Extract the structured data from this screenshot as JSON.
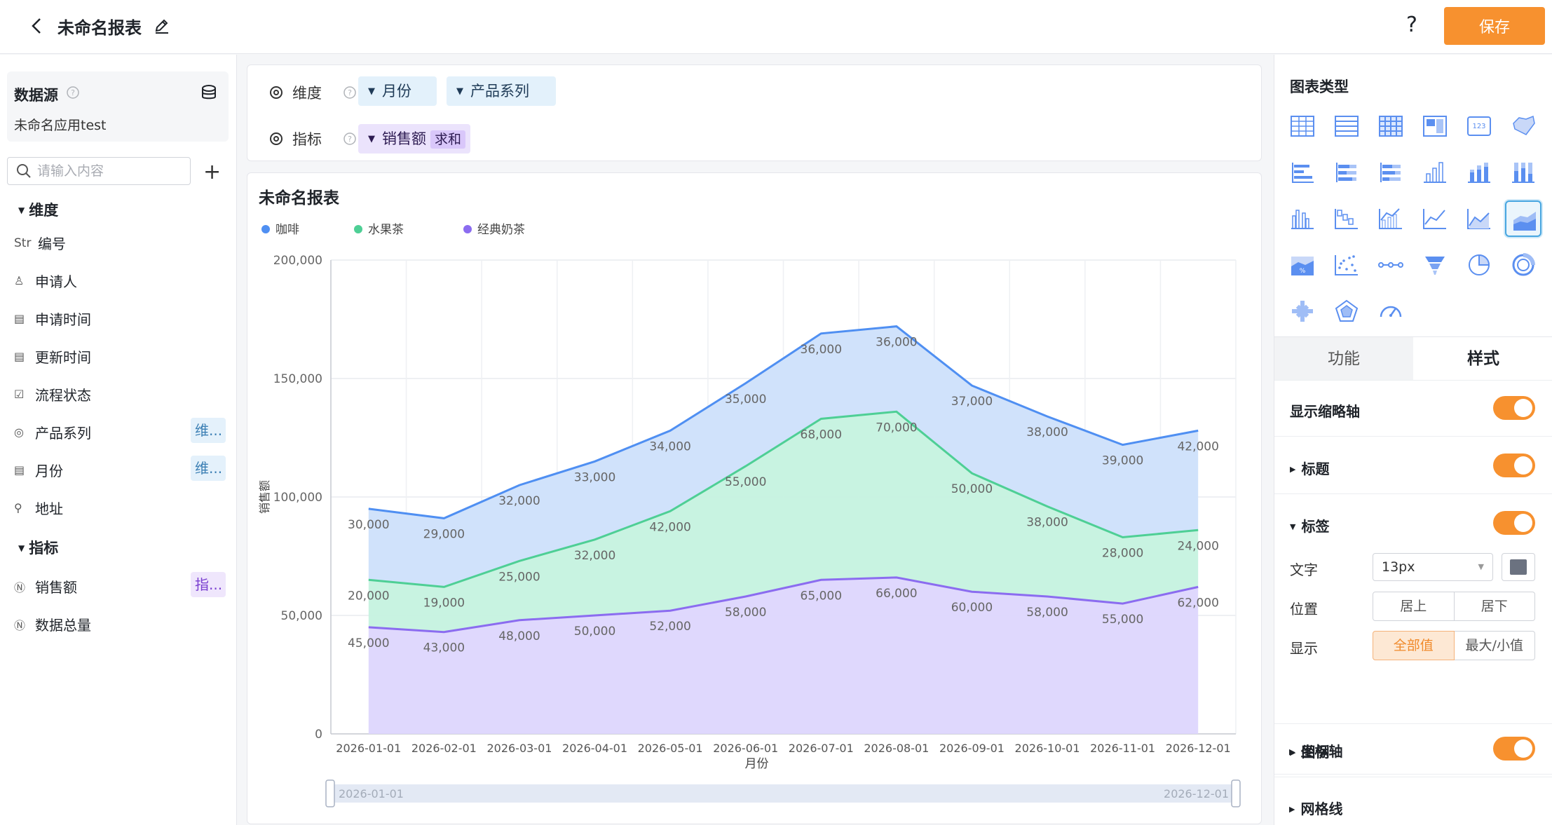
{
  "header": {
    "title": "未命名报表",
    "save_label": "保存",
    "help": "?"
  },
  "left": {
    "datasource_label": "数据源",
    "app_name": "未命名应用test",
    "search_placeholder": "请输入内容",
    "dim_group": "维度",
    "metric_group": "指标",
    "dimensions": [
      {
        "icon": "Str",
        "label": "编号"
      },
      {
        "icon": "person-icon",
        "label": "申请人"
      },
      {
        "icon": "calendar-icon",
        "label": "申请时间"
      },
      {
        "icon": "calendar-icon",
        "label": "更新时间"
      },
      {
        "icon": "checkbox-icon",
        "label": "流程状态"
      },
      {
        "icon": "target-icon",
        "label": "产品系列",
        "tag": "维..."
      },
      {
        "icon": "calendar-icon",
        "label": "月份",
        "tag": "维..."
      },
      {
        "icon": "location-icon",
        "label": "地址"
      }
    ],
    "metrics": [
      {
        "icon": "number-icon",
        "label": "销售额",
        "tag": "指..."
      },
      {
        "icon": "number-icon",
        "label": "数据总量"
      }
    ]
  },
  "fields": {
    "dim_label": "维度",
    "metric_label": "指标",
    "dim_pills": [
      "月份",
      "产品系列"
    ],
    "metric_pill": "销售额",
    "metric_agg": "求和"
  },
  "chart_data": {
    "type": "area",
    "stacked": true,
    "title": "未命名报表",
    "xlabel": "月份",
    "ylabel": "销售额",
    "ylim": [
      0,
      200000
    ],
    "yticks": [
      "200,000",
      "150,000",
      "100,000",
      "50,000",
      "0"
    ],
    "categories": [
      "2026-01-01",
      "2026-02-01",
      "2026-03-01",
      "2026-04-01",
      "2026-05-01",
      "2026-06-01",
      "2026-07-01",
      "2026-08-01",
      "2026-09-01",
      "2026-10-01",
      "2026-11-01",
      "2026-12-01"
    ],
    "series": [
      {
        "name": "经典奶茶",
        "color": "#8b6cf0",
        "fill": "#ddd6fd",
        "values": [
          45000,
          43000,
          48000,
          50000,
          52000,
          58000,
          65000,
          66000,
          60000,
          58000,
          55000,
          62000
        ],
        "labels": [
          "45,000",
          "43,000",
          "48,000",
          "50,000",
          "52,000",
          "58,000",
          "65,000",
          "66,000",
          "60,000",
          "58,000",
          "55,000",
          "62,000"
        ]
      },
      {
        "name": "水果茶",
        "color": "#4ecf95",
        "fill": "#c5f2df",
        "values": [
          20000,
          19000,
          25000,
          32000,
          42000,
          55000,
          68000,
          70000,
          50000,
          38000,
          28000,
          24000
        ],
        "labels": [
          "20,000",
          "19,000",
          "25,000",
          "32,000",
          "42,000",
          "55,000",
          "68,000",
          "70,000",
          "50,000",
          "38,000",
          "28,000",
          "24,000"
        ]
      },
      {
        "name": "咖啡",
        "color": "#4f8ff2",
        "fill": "#cde0fb",
        "values": [
          30000,
          29000,
          32000,
          33000,
          34000,
          35000,
          36000,
          36000,
          37000,
          38000,
          39000,
          42000
        ],
        "labels": [
          "30,000",
          "29,000",
          "32,000",
          "33,000",
          "34,000",
          "35,000",
          "36,000",
          "36,000",
          "37,000",
          "38,000",
          "39,000",
          "42,000"
        ]
      }
    ],
    "legend": [
      "咖啡",
      "水果茶",
      "经典奶茶"
    ],
    "legend_position": "top-left",
    "slider": {
      "start": "2026-01-01",
      "end": "2026-12-01"
    },
    "grid": true
  },
  "right": {
    "chart_type_label": "图表类型",
    "tab_function": "功能",
    "tab_style": "样式",
    "thumbnail_axis": "显示缩略轴",
    "title_sec": "标题",
    "label_sec": "标签",
    "text_label": "文字",
    "text_size": "13px",
    "position_label": "位置",
    "pos_top": "居上",
    "pos_bottom": "居下",
    "display_label": "显示",
    "display_all": "全部值",
    "display_minmax": "最大/小值",
    "legend_sec": "图例",
    "axis_sec": "坐标轴",
    "grid_sec": "网格线",
    "accent": "#f7912f"
  }
}
